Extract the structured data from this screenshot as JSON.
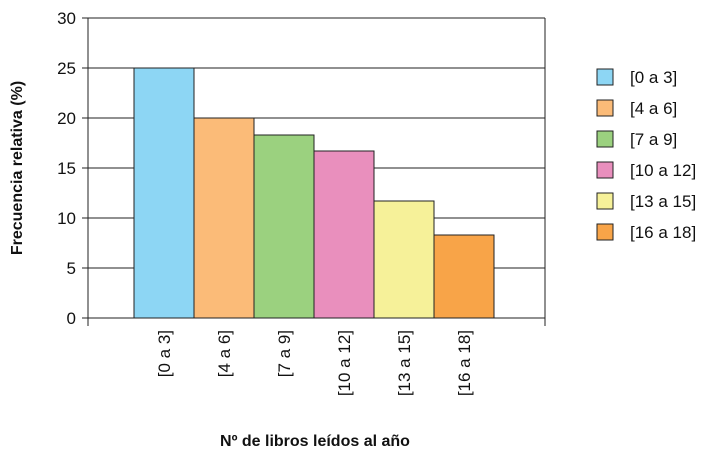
{
  "chart_data": {
    "type": "bar",
    "title": "",
    "xlabel": "Nº de libros leídos al año",
    "ylabel": "Frecuencia relativa (%)",
    "ylim": [
      0,
      30
    ],
    "yticks": [
      "0",
      "5",
      "10",
      "15",
      "20",
      "25",
      "30"
    ],
    "grid": true,
    "legend_position": "right",
    "categories": [
      "[0 a 3]",
      "[4 a 6]",
      "[7 a 9]",
      "[10 a 12]",
      "[13 a 15]",
      "[16 a 18]"
    ],
    "values": [
      25,
      20,
      18.3,
      16.7,
      11.7,
      8.3
    ],
    "colors": [
      "#8dd6f4",
      "#fbbb78",
      "#9bd17f",
      "#e98fbd",
      "#f6f199",
      "#f8a448"
    ],
    "legend": [
      "[0 a 3]",
      "[4 a 6]",
      "[7 a 9]",
      "[10 a 12]",
      "[13 a 15]",
      "[16 a 18]"
    ]
  }
}
